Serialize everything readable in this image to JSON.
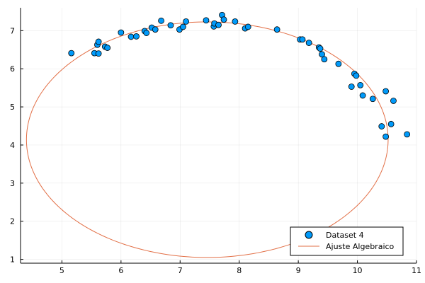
{
  "chart_data": {
    "type": "scatter",
    "title": "",
    "xlabel": "",
    "ylabel": "",
    "xlim": [
      4.3,
      11.0
    ],
    "ylim": [
      0.9,
      7.6
    ],
    "grid": true,
    "legend_position": "bottom-right",
    "x_ticks": [
      {
        "value": 5,
        "label": "5"
      },
      {
        "value": 6,
        "label": "6"
      },
      {
        "value": 7,
        "label": "7"
      },
      {
        "value": 8,
        "label": "8"
      },
      {
        "value": 9,
        "label": "9"
      },
      {
        "value": 10,
        "label": "10"
      },
      {
        "value": 11,
        "label": "11"
      }
    ],
    "y_ticks": [
      {
        "value": 1,
        "label": "1"
      },
      {
        "value": 2,
        "label": "2"
      },
      {
        "value": 3,
        "label": "3"
      },
      {
        "value": 4,
        "label": "4"
      },
      {
        "value": 5,
        "label": "5"
      },
      {
        "value": 6,
        "label": "6"
      },
      {
        "value": 7,
        "label": "7"
      }
    ],
    "series": [
      {
        "name": "Dataset 4",
        "kind": "scatter",
        "color": "#009AFA",
        "points": [
          {
            "x": 5.16,
            "y": 6.41
          },
          {
            "x": 5.55,
            "y": 6.41
          },
          {
            "x": 5.6,
            "y": 6.63
          },
          {
            "x": 5.62,
            "y": 6.71
          },
          {
            "x": 5.62,
            "y": 6.4
          },
          {
            "x": 5.73,
            "y": 6.58
          },
          {
            "x": 5.77,
            "y": 6.55
          },
          {
            "x": 6.0,
            "y": 6.95
          },
          {
            "x": 6.17,
            "y": 6.84
          },
          {
            "x": 6.26,
            "y": 6.85
          },
          {
            "x": 6.4,
            "y": 6.99
          },
          {
            "x": 6.43,
            "y": 6.94
          },
          {
            "x": 6.52,
            "y": 7.08
          },
          {
            "x": 6.58,
            "y": 7.03
          },
          {
            "x": 6.68,
            "y": 7.26
          },
          {
            "x": 6.84,
            "y": 7.14
          },
          {
            "x": 6.99,
            "y": 7.03
          },
          {
            "x": 7.05,
            "y": 7.1
          },
          {
            "x": 7.1,
            "y": 7.24
          },
          {
            "x": 7.44,
            "y": 7.27
          },
          {
            "x": 7.57,
            "y": 7.11
          },
          {
            "x": 7.58,
            "y": 7.19
          },
          {
            "x": 7.65,
            "y": 7.15
          },
          {
            "x": 7.71,
            "y": 7.41
          },
          {
            "x": 7.74,
            "y": 7.29
          },
          {
            "x": 7.93,
            "y": 7.24
          },
          {
            "x": 8.1,
            "y": 7.06
          },
          {
            "x": 8.15,
            "y": 7.1
          },
          {
            "x": 8.64,
            "y": 7.03
          },
          {
            "x": 9.03,
            "y": 6.77
          },
          {
            "x": 9.07,
            "y": 6.77
          },
          {
            "x": 9.18,
            "y": 6.68
          },
          {
            "x": 9.35,
            "y": 6.56
          },
          {
            "x": 9.37,
            "y": 6.53
          },
          {
            "x": 9.4,
            "y": 6.38
          },
          {
            "x": 9.44,
            "y": 6.25
          },
          {
            "x": 9.68,
            "y": 6.13
          },
          {
            "x": 9.9,
            "y": 5.53
          },
          {
            "x": 9.95,
            "y": 5.87
          },
          {
            "x": 9.98,
            "y": 5.82
          },
          {
            "x": 10.05,
            "y": 5.57
          },
          {
            "x": 10.09,
            "y": 5.3
          },
          {
            "x": 10.26,
            "y": 5.21
          },
          {
            "x": 10.41,
            "y": 4.49
          },
          {
            "x": 10.48,
            "y": 5.41
          },
          {
            "x": 10.48,
            "y": 4.22
          },
          {
            "x": 10.57,
            "y": 4.55
          },
          {
            "x": 10.61,
            "y": 5.16
          },
          {
            "x": 10.84,
            "y": 4.28
          }
        ]
      },
      {
        "name": "Ajuste Algebraico",
        "kind": "line",
        "color": "#E26F46",
        "curve": "ellipse",
        "center": [
          7.46,
          4.14
        ],
        "semi_axes": [
          3.06,
          3.09
        ],
        "approx_x_range": [
          4.4,
          10.52
        ],
        "approx_y_range": [
          1.05,
          7.23
        ],
        "start_point": [
          10.52,
          3.88
        ]
      }
    ]
  }
}
